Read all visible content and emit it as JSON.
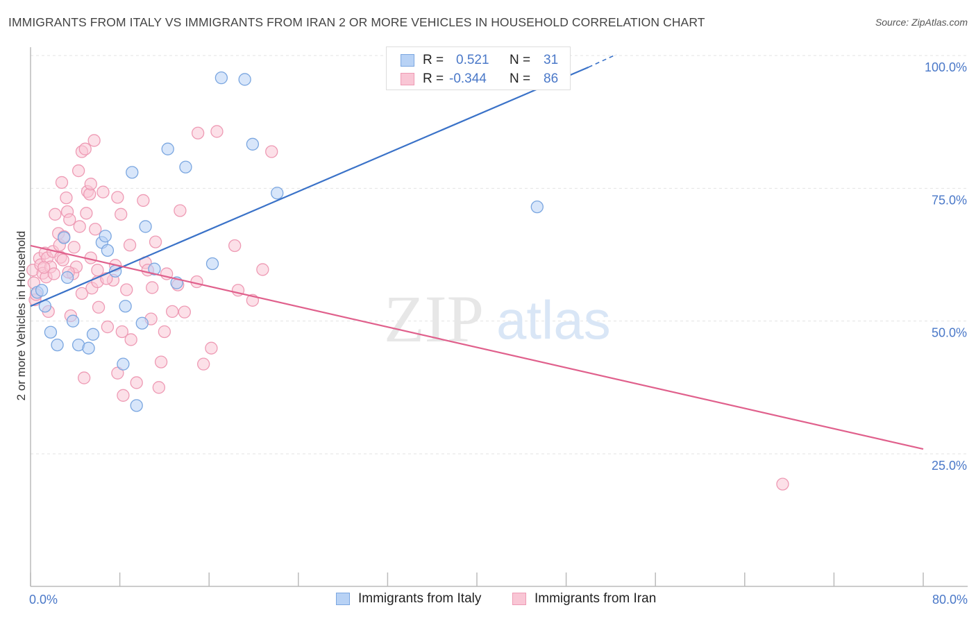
{
  "title": "IMMIGRANTS FROM ITALY VS IMMIGRANTS FROM IRAN 2 OR MORE VEHICLES IN HOUSEHOLD CORRELATION CHART",
  "source": "Source: ZipAtlas.com",
  "watermark": {
    "zip": "ZIP",
    "atlas": "atlas"
  },
  "colors": {
    "italy_fill": "#b8d2f5",
    "italy_stroke": "#7aa6e0",
    "italy_line": "#3a72c8",
    "iran_fill": "#f9c6d5",
    "iran_stroke": "#ee9ab4",
    "iran_line": "#e0608c",
    "tick_text": "#4a78c8",
    "grid": "#e3e3e3"
  },
  "legend": {
    "r_label": "R =",
    "n_label": "N =",
    "italy": {
      "r": "0.521",
      "n": "31"
    },
    "iran": {
      "r": "-0.344",
      "n": "86"
    }
  },
  "chart_data": {
    "type": "scatter",
    "title": "IMMIGRANTS FROM ITALY VS IMMIGRANTS FROM IRAN 2 OR MORE VEHICLES IN HOUSEHOLD CORRELATION CHART",
    "xlabel": "",
    "ylabel": "2 or more Vehicles in Household",
    "xlim": [
      0,
      80
    ],
    "ylim": [
      0,
      105
    ],
    "x_tick_labels": [
      "0.0%",
      "80.0%"
    ],
    "y_ticks": [
      25,
      50,
      75,
      100
    ],
    "y_tick_labels": [
      "25.0%",
      "50.0%",
      "75.0%",
      "100.0%"
    ],
    "grid": "horizontal dashed",
    "legend_position": "top-center",
    "series": [
      {
        "name": "Immigrants from Italy",
        "trend": {
          "x": [
            0,
            50
          ],
          "y": [
            52.8,
            97.8
          ],
          "dashed_to": [
            52.5,
            100.2
          ]
        },
        "points": [
          [
            0.6,
            55.4
          ],
          [
            1.0,
            55.8
          ],
          [
            1.3,
            52.8
          ],
          [
            1.8,
            47.9
          ],
          [
            2.4,
            45.5
          ],
          [
            3.0,
            65.7
          ],
          [
            3.3,
            58.2
          ],
          [
            3.8,
            50.0
          ],
          [
            4.3,
            45.5
          ],
          [
            5.2,
            44.9
          ],
          [
            5.6,
            47.5
          ],
          [
            6.4,
            64.8
          ],
          [
            6.7,
            66.0
          ],
          [
            6.9,
            63.3
          ],
          [
            7.6,
            59.4
          ],
          [
            8.5,
            52.8
          ],
          [
            8.3,
            41.9
          ],
          [
            9.1,
            78.0
          ],
          [
            9.5,
            34.1
          ],
          [
            10.0,
            49.6
          ],
          [
            10.3,
            67.8
          ],
          [
            11.1,
            59.8
          ],
          [
            12.3,
            82.4
          ],
          [
            13.1,
            57.2
          ],
          [
            13.9,
            79.0
          ],
          [
            16.3,
            60.8
          ],
          [
            17.1,
            95.8
          ],
          [
            19.2,
            95.5
          ],
          [
            19.9,
            83.3
          ],
          [
            22.1,
            74.1
          ],
          [
            45.4,
            71.5
          ]
        ]
      },
      {
        "name": "Immigrants from Iran",
        "trend": {
          "x": [
            0,
            80
          ],
          "y": [
            64.2,
            25.9
          ]
        },
        "points": [
          [
            0.2,
            59.6
          ],
          [
            0.3,
            57.2
          ],
          [
            0.4,
            54.0
          ],
          [
            0.8,
            61.8
          ],
          [
            0.9,
            60.6
          ],
          [
            1.1,
            59.0
          ],
          [
            1.3,
            62.8
          ],
          [
            1.4,
            58.3
          ],
          [
            1.5,
            61.9
          ],
          [
            1.6,
            51.8
          ],
          [
            1.8,
            60.2
          ],
          [
            2.0,
            63.1
          ],
          [
            2.1,
            58.9
          ],
          [
            2.2,
            70.1
          ],
          [
            2.5,
            66.5
          ],
          [
            2.6,
            64.3
          ],
          [
            2.7,
            62.0
          ],
          [
            2.8,
            76.1
          ],
          [
            3.0,
            65.9
          ],
          [
            3.2,
            73.2
          ],
          [
            3.3,
            70.6
          ],
          [
            3.5,
            69.1
          ],
          [
            3.6,
            51.0
          ],
          [
            3.8,
            58.9
          ],
          [
            3.9,
            63.9
          ],
          [
            4.1,
            60.2
          ],
          [
            4.3,
            78.3
          ],
          [
            4.4,
            67.8
          ],
          [
            4.6,
            55.2
          ],
          [
            4.8,
            39.3
          ],
          [
            4.6,
            81.9
          ],
          [
            4.9,
            82.4
          ],
          [
            5.0,
            70.3
          ],
          [
            5.1,
            74.4
          ],
          [
            5.3,
            73.9
          ],
          [
            5.4,
            75.8
          ],
          [
            5.4,
            61.9
          ],
          [
            5.5,
            56.2
          ],
          [
            5.7,
            84.0
          ],
          [
            5.8,
            67.3
          ],
          [
            6.0,
            59.6
          ],
          [
            6.0,
            57.4
          ],
          [
            6.1,
            52.6
          ],
          [
            6.5,
            74.3
          ],
          [
            6.9,
            48.9
          ],
          [
            7.4,
            57.7
          ],
          [
            7.6,
            60.5
          ],
          [
            7.8,
            73.3
          ],
          [
            7.8,
            40.2
          ],
          [
            8.1,
            70.1
          ],
          [
            8.2,
            48.0
          ],
          [
            8.3,
            36.0
          ],
          [
            8.6,
            55.9
          ],
          [
            8.9,
            64.3
          ],
          [
            9.5,
            38.4
          ],
          [
            10.1,
            72.7
          ],
          [
            10.3,
            61.0
          ],
          [
            10.5,
            59.6
          ],
          [
            10.8,
            50.4
          ],
          [
            10.9,
            56.3
          ],
          [
            11.2,
            64.9
          ],
          [
            11.5,
            37.5
          ],
          [
            11.7,
            42.3
          ],
          [
            12.2,
            58.9
          ],
          [
            12.7,
            51.8
          ],
          [
            13.2,
            56.8
          ],
          [
            13.4,
            70.8
          ],
          [
            13.8,
            51.7
          ],
          [
            14.9,
            57.4
          ],
          [
            15.0,
            85.4
          ],
          [
            15.5,
            41.9
          ],
          [
            16.2,
            44.9
          ],
          [
            16.7,
            85.7
          ],
          [
            18.3,
            64.2
          ],
          [
            18.6,
            55.8
          ],
          [
            19.9,
            53.9
          ],
          [
            20.8,
            59.7
          ],
          [
            21.6,
            81.9
          ],
          [
            67.4,
            19.3
          ],
          [
            0.5,
            55.0
          ],
          [
            1.2,
            60.1
          ],
          [
            2.9,
            61.5
          ],
          [
            3.4,
            59.2
          ],
          [
            6.8,
            58.0
          ],
          [
            9.0,
            46.5
          ],
          [
            12.0,
            48.0
          ]
        ]
      }
    ]
  }
}
